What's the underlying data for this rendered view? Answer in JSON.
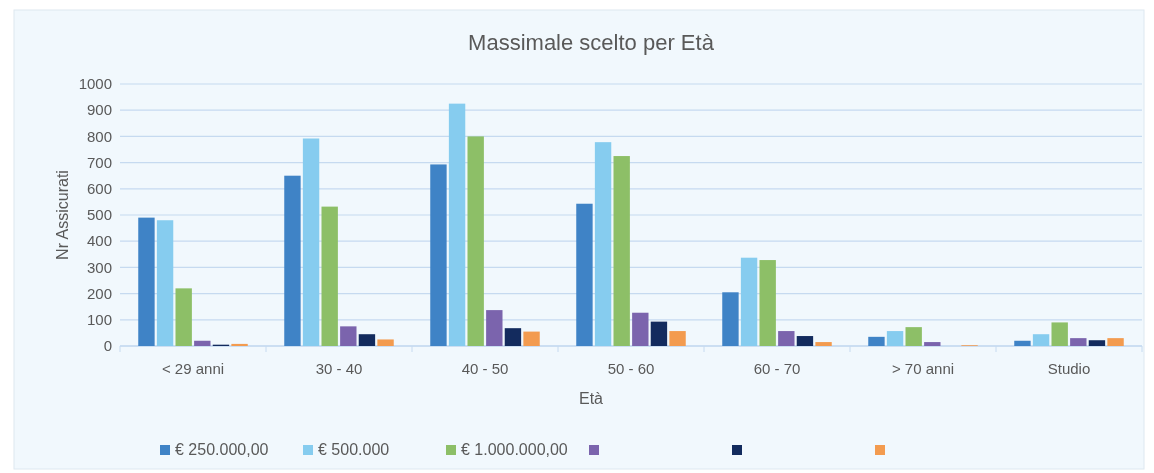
{
  "chart_data": {
    "type": "bar",
    "title": "Massimale scelto per Età",
    "xlabel": "Età",
    "ylabel": "Nr Assicurati",
    "categories": [
      "< 29 anni",
      "30 - 40",
      "40 - 50",
      "50 - 60",
      "60 - 70",
      "> 70 anni",
      "Studio"
    ],
    "series": [
      {
        "name": "€ 250.000,00",
        "color": "#3f83c6",
        "values": [
          490,
          650,
          693,
          543,
          205,
          35,
          20
        ]
      },
      {
        "name": "€ 500.000",
        "color": "#86ccef",
        "values": [
          480,
          792,
          925,
          778,
          337,
          57,
          45
        ]
      },
      {
        "name": "€ 1.000.000,00",
        "color": "#8dbf67",
        "values": [
          220,
          532,
          800,
          725,
          328,
          72,
          90
        ]
      },
      {
        "color": "#7b64ad",
        "values": [
          20,
          75,
          137,
          127,
          57,
          15,
          30
        ]
      },
      {
        "color": "#132b5e",
        "values": [
          5,
          45,
          68,
          93,
          38,
          0,
          22
        ]
      },
      {
        "color": "#f39b4f",
        "values": [
          8,
          25,
          55,
          57,
          15,
          3,
          30
        ]
      }
    ],
    "ylim": [
      0,
      1000
    ],
    "yticks": [
      0,
      100,
      200,
      300,
      400,
      500,
      600,
      700,
      800,
      900,
      1000
    ],
    "grid": "y",
    "legend": "bottom"
  }
}
